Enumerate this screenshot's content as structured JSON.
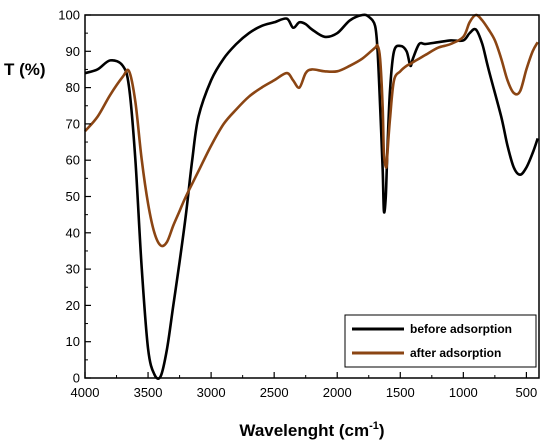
{
  "chart_data": {
    "type": "line",
    "ylabel": "T (%)",
    "xlabel_main": "Wavelenght (cm",
    "xlabel_sup": "-1",
    "xlabel_close": ")",
    "xlim": [
      4000,
      400
    ],
    "ylim": [
      0,
      100
    ],
    "x_ticks": [
      4000,
      3500,
      3000,
      2500,
      2000,
      1500,
      1000,
      500
    ],
    "y_ticks": [
      0,
      10,
      20,
      30,
      40,
      50,
      60,
      70,
      80,
      90,
      100
    ],
    "grid": false,
    "legend_position": "bottom-right",
    "series": [
      {
        "name": "before adsorption",
        "color": "#000000",
        "points": [
          [
            4000,
            84
          ],
          [
            3900,
            85
          ],
          [
            3800,
            87.5
          ],
          [
            3700,
            86
          ],
          [
            3650,
            80
          ],
          [
            3600,
            60
          ],
          [
            3550,
            30
          ],
          [
            3500,
            8
          ],
          [
            3450,
            1
          ],
          [
            3400,
            0.5
          ],
          [
            3350,
            8
          ],
          [
            3300,
            20
          ],
          [
            3250,
            32
          ],
          [
            3200,
            45
          ],
          [
            3150,
            60
          ],
          [
            3100,
            72
          ],
          [
            3000,
            82
          ],
          [
            2900,
            88
          ],
          [
            2800,
            92
          ],
          [
            2700,
            95
          ],
          [
            2600,
            97
          ],
          [
            2500,
            98
          ],
          [
            2400,
            99
          ],
          [
            2350,
            96.5
          ],
          [
            2300,
            98
          ],
          [
            2250,
            97.5
          ],
          [
            2200,
            96
          ],
          [
            2100,
            94
          ],
          [
            2000,
            95
          ],
          [
            1900,
            98.5
          ],
          [
            1800,
            100
          ],
          [
            1750,
            99.5
          ],
          [
            1700,
            97
          ],
          [
            1680,
            90
          ],
          [
            1660,
            75
          ],
          [
            1640,
            58
          ],
          [
            1630,
            46
          ],
          [
            1615,
            50
          ],
          [
            1600,
            65
          ],
          [
            1580,
            80
          ],
          [
            1550,
            90
          ],
          [
            1500,
            91.5
          ],
          [
            1450,
            90
          ],
          [
            1420,
            86
          ],
          [
            1400,
            88
          ],
          [
            1350,
            92
          ],
          [
            1300,
            92
          ],
          [
            1200,
            92.5
          ],
          [
            1100,
            93
          ],
          [
            1000,
            93
          ],
          [
            950,
            95
          ],
          [
            900,
            96
          ],
          [
            850,
            92
          ],
          [
            800,
            85
          ],
          [
            700,
            72
          ],
          [
            650,
            64
          ],
          [
            600,
            58
          ],
          [
            550,
            56
          ],
          [
            500,
            58
          ],
          [
            450,
            62
          ],
          [
            410,
            66
          ]
        ]
      },
      {
        "name": "after adsorption",
        "color": "#8B4513",
        "points": [
          [
            4000,
            68
          ],
          [
            3900,
            72
          ],
          [
            3800,
            78
          ],
          [
            3700,
            83
          ],
          [
            3650,
            84.5
          ],
          [
            3600,
            76
          ],
          [
            3550,
            60
          ],
          [
            3500,
            48
          ],
          [
            3450,
            40
          ],
          [
            3400,
            36.5
          ],
          [
            3350,
            37.5
          ],
          [
            3300,
            42
          ],
          [
            3250,
            46
          ],
          [
            3200,
            50
          ],
          [
            3100,
            57
          ],
          [
            3000,
            64
          ],
          [
            2900,
            70
          ],
          [
            2800,
            74
          ],
          [
            2700,
            77.5
          ],
          [
            2600,
            80
          ],
          [
            2500,
            82
          ],
          [
            2400,
            84
          ],
          [
            2350,
            82
          ],
          [
            2300,
            80
          ],
          [
            2250,
            84
          ],
          [
            2200,
            85
          ],
          [
            2100,
            84.5
          ],
          [
            2000,
            84.5
          ],
          [
            1900,
            86
          ],
          [
            1800,
            88
          ],
          [
            1700,
            91
          ],
          [
            1680,
            91.5
          ],
          [
            1660,
            88
          ],
          [
            1640,
            75
          ],
          [
            1630,
            62
          ],
          [
            1610,
            58
          ],
          [
            1600,
            63
          ],
          [
            1580,
            72
          ],
          [
            1550,
            82
          ],
          [
            1500,
            84.5
          ],
          [
            1450,
            86
          ],
          [
            1420,
            86.5
          ],
          [
            1400,
            87
          ],
          [
            1350,
            88
          ],
          [
            1300,
            89
          ],
          [
            1200,
            91
          ],
          [
            1100,
            92
          ],
          [
            1000,
            94
          ],
          [
            950,
            98
          ],
          [
            900,
            100
          ],
          [
            850,
            98.5
          ],
          [
            800,
            96
          ],
          [
            750,
            93
          ],
          [
            700,
            88
          ],
          [
            650,
            82
          ],
          [
            600,
            78.5
          ],
          [
            550,
            79
          ],
          [
            500,
            85
          ],
          [
            450,
            90
          ],
          [
            410,
            92.5
          ]
        ]
      }
    ]
  }
}
